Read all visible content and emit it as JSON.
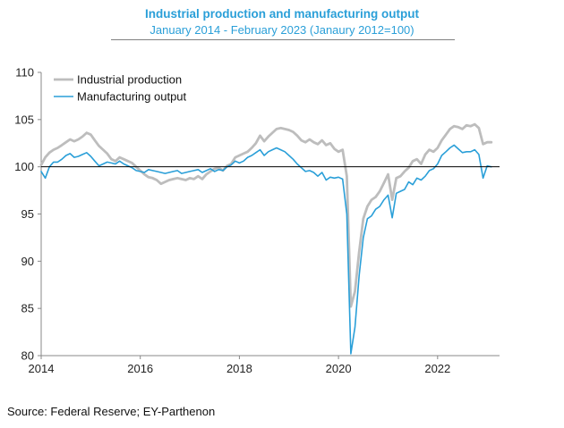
{
  "chart_data": {
    "type": "line",
    "title": "Industrial production and manufacturing output",
    "subtitle": "January 2014 - February 2023 (Janaury 2012=100)",
    "xlabel": "",
    "ylabel": "",
    "xlim": [
      2014.0,
      2023.25
    ],
    "ylim": [
      80,
      110
    ],
    "y_ticks": [
      80,
      85,
      90,
      95,
      100,
      105,
      110
    ],
    "x_ticks": [
      2014,
      2016,
      2018,
      2020,
      2022
    ],
    "reference_line": 100,
    "legend_position": "top-left",
    "series": [
      {
        "name": "Industrial production",
        "color": "#bdbdbd",
        "points": [
          [
            2014.0,
            100.2
          ],
          [
            2014.083,
            101.0
          ],
          [
            2014.167,
            101.5
          ],
          [
            2014.25,
            101.8
          ],
          [
            2014.333,
            102.0
          ],
          [
            2014.417,
            102.3
          ],
          [
            2014.5,
            102.6
          ],
          [
            2014.583,
            102.9
          ],
          [
            2014.667,
            102.7
          ],
          [
            2014.75,
            102.9
          ],
          [
            2014.833,
            103.2
          ],
          [
            2014.917,
            103.6
          ],
          [
            2015.0,
            103.4
          ],
          [
            2015.083,
            102.8
          ],
          [
            2015.167,
            102.2
          ],
          [
            2015.25,
            101.8
          ],
          [
            2015.333,
            101.4
          ],
          [
            2015.417,
            100.8
          ],
          [
            2015.5,
            100.6
          ],
          [
            2015.583,
            101.0
          ],
          [
            2015.667,
            100.8
          ],
          [
            2015.75,
            100.6
          ],
          [
            2015.833,
            100.4
          ],
          [
            2015.917,
            100.0
          ],
          [
            2016.0,
            99.6
          ],
          [
            2016.083,
            99.2
          ],
          [
            2016.167,
            98.9
          ],
          [
            2016.25,
            98.8
          ],
          [
            2016.333,
            98.6
          ],
          [
            2016.417,
            98.2
          ],
          [
            2016.5,
            98.4
          ],
          [
            2016.583,
            98.6
          ],
          [
            2016.667,
            98.7
          ],
          [
            2016.75,
            98.8
          ],
          [
            2016.833,
            98.7
          ],
          [
            2016.917,
            98.6
          ],
          [
            2017.0,
            98.8
          ],
          [
            2017.083,
            98.7
          ],
          [
            2017.167,
            99.0
          ],
          [
            2017.25,
            98.7
          ],
          [
            2017.333,
            99.2
          ],
          [
            2017.417,
            99.5
          ],
          [
            2017.5,
            99.8
          ],
          [
            2017.583,
            99.9
          ],
          [
            2017.667,
            99.6
          ],
          [
            2017.75,
            100.1
          ],
          [
            2017.833,
            100.3
          ],
          [
            2017.917,
            101.0
          ],
          [
            2018.0,
            101.2
          ],
          [
            2018.083,
            101.4
          ],
          [
            2018.167,
            101.6
          ],
          [
            2018.25,
            102.0
          ],
          [
            2018.333,
            102.5
          ],
          [
            2018.417,
            103.3
          ],
          [
            2018.5,
            102.7
          ],
          [
            2018.583,
            103.2
          ],
          [
            2018.667,
            103.6
          ],
          [
            2018.75,
            104.0
          ],
          [
            2018.833,
            104.1
          ],
          [
            2018.917,
            104.0
          ],
          [
            2019.0,
            103.9
          ],
          [
            2019.083,
            103.7
          ],
          [
            2019.167,
            103.3
          ],
          [
            2019.25,
            102.8
          ],
          [
            2019.333,
            102.6
          ],
          [
            2019.417,
            102.9
          ],
          [
            2019.5,
            102.6
          ],
          [
            2019.583,
            102.4
          ],
          [
            2019.667,
            102.8
          ],
          [
            2019.75,
            102.3
          ],
          [
            2019.833,
            102.5
          ],
          [
            2019.917,
            101.9
          ],
          [
            2020.0,
            101.6
          ],
          [
            2020.083,
            101.8
          ],
          [
            2020.167,
            99.0
          ],
          [
            2020.25,
            85.2
          ],
          [
            2020.333,
            86.8
          ],
          [
            2020.417,
            91.0
          ],
          [
            2020.5,
            94.5
          ],
          [
            2020.583,
            95.8
          ],
          [
            2020.667,
            96.5
          ],
          [
            2020.75,
            96.8
          ],
          [
            2020.833,
            97.4
          ],
          [
            2020.917,
            98.3
          ],
          [
            2021.0,
            99.2
          ],
          [
            2021.083,
            96.5
          ],
          [
            2021.167,
            98.8
          ],
          [
            2021.25,
            99.0
          ],
          [
            2021.333,
            99.5
          ],
          [
            2021.417,
            99.9
          ],
          [
            2021.5,
            100.6
          ],
          [
            2021.583,
            100.8
          ],
          [
            2021.667,
            100.3
          ],
          [
            2021.75,
            101.3
          ],
          [
            2021.833,
            101.8
          ],
          [
            2021.917,
            101.6
          ],
          [
            2022.0,
            102.0
          ],
          [
            2022.083,
            102.8
          ],
          [
            2022.167,
            103.4
          ],
          [
            2022.25,
            104.0
          ],
          [
            2022.333,
            104.3
          ],
          [
            2022.417,
            104.2
          ],
          [
            2022.5,
            104.0
          ],
          [
            2022.583,
            104.4
          ],
          [
            2022.667,
            104.3
          ],
          [
            2022.75,
            104.5
          ],
          [
            2022.833,
            104.1
          ],
          [
            2022.917,
            102.4
          ],
          [
            2023.0,
            102.6
          ],
          [
            2023.083,
            102.6
          ]
        ]
      },
      {
        "name": "Manufacturing output",
        "color": "#2a9fd8",
        "points": [
          [
            2014.0,
            99.5
          ],
          [
            2014.083,
            98.8
          ],
          [
            2014.167,
            100.0
          ],
          [
            2014.25,
            100.5
          ],
          [
            2014.333,
            100.5
          ],
          [
            2014.417,
            100.8
          ],
          [
            2014.5,
            101.2
          ],
          [
            2014.583,
            101.4
          ],
          [
            2014.667,
            101.0
          ],
          [
            2014.75,
            101.1
          ],
          [
            2014.833,
            101.3
          ],
          [
            2014.917,
            101.5
          ],
          [
            2015.0,
            101.1
          ],
          [
            2015.083,
            100.6
          ],
          [
            2015.167,
            100.1
          ],
          [
            2015.25,
            100.3
          ],
          [
            2015.333,
            100.5
          ],
          [
            2015.417,
            100.4
          ],
          [
            2015.5,
            100.3
          ],
          [
            2015.583,
            100.6
          ],
          [
            2015.667,
            100.3
          ],
          [
            2015.75,
            100.1
          ],
          [
            2015.833,
            99.9
          ],
          [
            2015.917,
            99.6
          ],
          [
            2016.0,
            99.5
          ],
          [
            2016.083,
            99.4
          ],
          [
            2016.167,
            99.7
          ],
          [
            2016.25,
            99.6
          ],
          [
            2016.333,
            99.5
          ],
          [
            2016.417,
            99.4
          ],
          [
            2016.5,
            99.3
          ],
          [
            2016.583,
            99.4
          ],
          [
            2016.667,
            99.5
          ],
          [
            2016.75,
            99.6
          ],
          [
            2016.833,
            99.3
          ],
          [
            2016.917,
            99.4
          ],
          [
            2017.0,
            99.5
          ],
          [
            2017.083,
            99.6
          ],
          [
            2017.167,
            99.7
          ],
          [
            2017.25,
            99.4
          ],
          [
            2017.333,
            99.6
          ],
          [
            2017.417,
            99.8
          ],
          [
            2017.5,
            99.5
          ],
          [
            2017.583,
            99.7
          ],
          [
            2017.667,
            99.6
          ],
          [
            2017.75,
            100.0
          ],
          [
            2017.833,
            100.2
          ],
          [
            2017.917,
            100.6
          ],
          [
            2018.0,
            100.4
          ],
          [
            2018.083,
            100.6
          ],
          [
            2018.167,
            101.0
          ],
          [
            2018.25,
            101.2
          ],
          [
            2018.333,
            101.5
          ],
          [
            2018.417,
            101.8
          ],
          [
            2018.5,
            101.2
          ],
          [
            2018.583,
            101.6
          ],
          [
            2018.667,
            101.8
          ],
          [
            2018.75,
            102.0
          ],
          [
            2018.833,
            101.8
          ],
          [
            2018.917,
            101.6
          ],
          [
            2019.0,
            101.2
          ],
          [
            2019.083,
            100.8
          ],
          [
            2019.167,
            100.3
          ],
          [
            2019.25,
            99.9
          ],
          [
            2019.333,
            99.5
          ],
          [
            2019.417,
            99.6
          ],
          [
            2019.5,
            99.4
          ],
          [
            2019.583,
            99.0
          ],
          [
            2019.667,
            99.4
          ],
          [
            2019.75,
            98.6
          ],
          [
            2019.833,
            98.9
          ],
          [
            2019.917,
            98.8
          ],
          [
            2020.0,
            98.9
          ],
          [
            2020.083,
            98.7
          ],
          [
            2020.167,
            95.0
          ],
          [
            2020.25,
            80.2
          ],
          [
            2020.333,
            83.0
          ],
          [
            2020.417,
            88.5
          ],
          [
            2020.5,
            92.5
          ],
          [
            2020.583,
            94.5
          ],
          [
            2020.667,
            94.8
          ],
          [
            2020.75,
            95.5
          ],
          [
            2020.833,
            95.8
          ],
          [
            2020.917,
            96.5
          ],
          [
            2021.0,
            97.0
          ],
          [
            2021.083,
            94.6
          ],
          [
            2021.167,
            97.2
          ],
          [
            2021.25,
            97.4
          ],
          [
            2021.333,
            97.6
          ],
          [
            2021.417,
            98.4
          ],
          [
            2021.5,
            98.1
          ],
          [
            2021.583,
            98.8
          ],
          [
            2021.667,
            98.6
          ],
          [
            2021.75,
            99.0
          ],
          [
            2021.833,
            99.6
          ],
          [
            2021.917,
            99.8
          ],
          [
            2022.0,
            100.3
          ],
          [
            2022.083,
            101.2
          ],
          [
            2022.167,
            101.6
          ],
          [
            2022.25,
            102.0
          ],
          [
            2022.333,
            102.3
          ],
          [
            2022.417,
            101.9
          ],
          [
            2022.5,
            101.5
          ],
          [
            2022.583,
            101.6
          ],
          [
            2022.667,
            101.6
          ],
          [
            2022.75,
            101.8
          ],
          [
            2022.833,
            101.3
          ],
          [
            2022.917,
            98.8
          ],
          [
            2023.0,
            100.1
          ],
          [
            2023.083,
            100.0
          ]
        ]
      }
    ]
  },
  "footer": {
    "source": "Source: Federal Reserve; EY-Parthenon"
  }
}
